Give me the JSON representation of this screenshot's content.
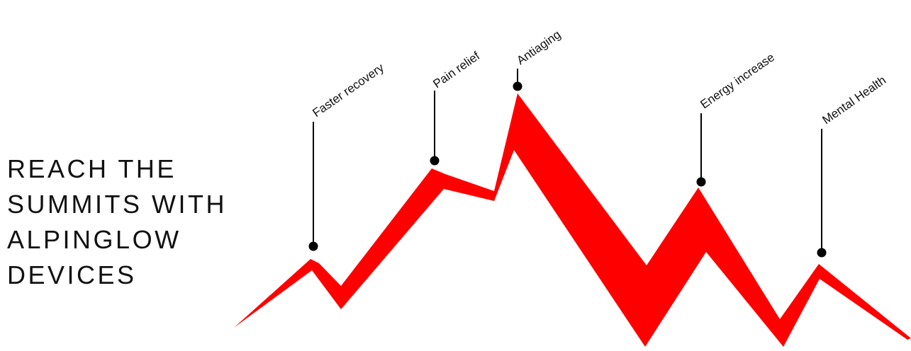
{
  "headline": {
    "lines": [
      "REACH THE",
      "SUMMITS WITH",
      "ALPINGLOW",
      "DEVICES"
    ]
  },
  "milestones": [
    {
      "label": "Faster recovery"
    },
    {
      "label": "Pain relief"
    },
    {
      "label": "Antiaging"
    },
    {
      "label": "Energy increase"
    },
    {
      "label": "Mental Health"
    }
  ],
  "colors": {
    "mountain": "#ff0000",
    "text": "#111111",
    "marker": "#000000"
  }
}
